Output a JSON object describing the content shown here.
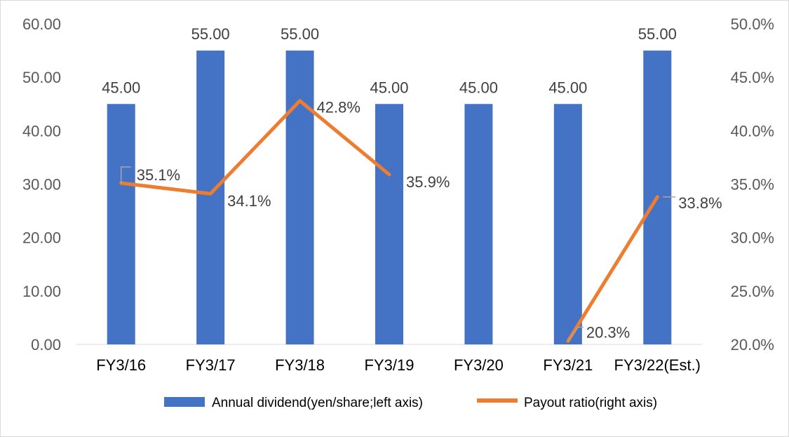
{
  "chart_data": {
    "type": "bar",
    "categories": [
      "FY3/16",
      "FY3/17",
      "FY3/18",
      "FY3/19",
      "FY3/20",
      "FY3/21",
      "FY3/22(Est.)"
    ],
    "series": [
      {
        "name": "Annual dividend(yen/share;left axis)",
        "type": "bar",
        "axis": "left",
        "color": "#4472C4",
        "values": [
          45,
          55,
          55,
          45,
          45,
          45,
          55
        ],
        "labels": [
          "45.00",
          "55.00",
          "55.00",
          "45.00",
          "45.00",
          "45.00",
          "55.00"
        ]
      },
      {
        "name": "Payout ratio(right axis)",
        "type": "line",
        "axis": "right",
        "color": "#ED7D31",
        "values": [
          35.1,
          34.1,
          42.8,
          35.9,
          null,
          20.3,
          33.8
        ],
        "labels": [
          "35.1%",
          "34.1%",
          "42.8%",
          "35.9%",
          "",
          "20.3%",
          "33.8%"
        ]
      }
    ],
    "y_left": {
      "range": [
        0,
        60
      ],
      "ticks": [
        "0.00",
        "10.00",
        "20.00",
        "30.00",
        "40.00",
        "50.00",
        "60.00"
      ]
    },
    "y_right": {
      "range": [
        20,
        50
      ],
      "ticks": [
        "20.0%",
        "25.0%",
        "30.0%",
        "35.0%",
        "40.0%",
        "45.0%",
        "50.0%"
      ]
    },
    "grid": false,
    "legend": "bottom"
  }
}
